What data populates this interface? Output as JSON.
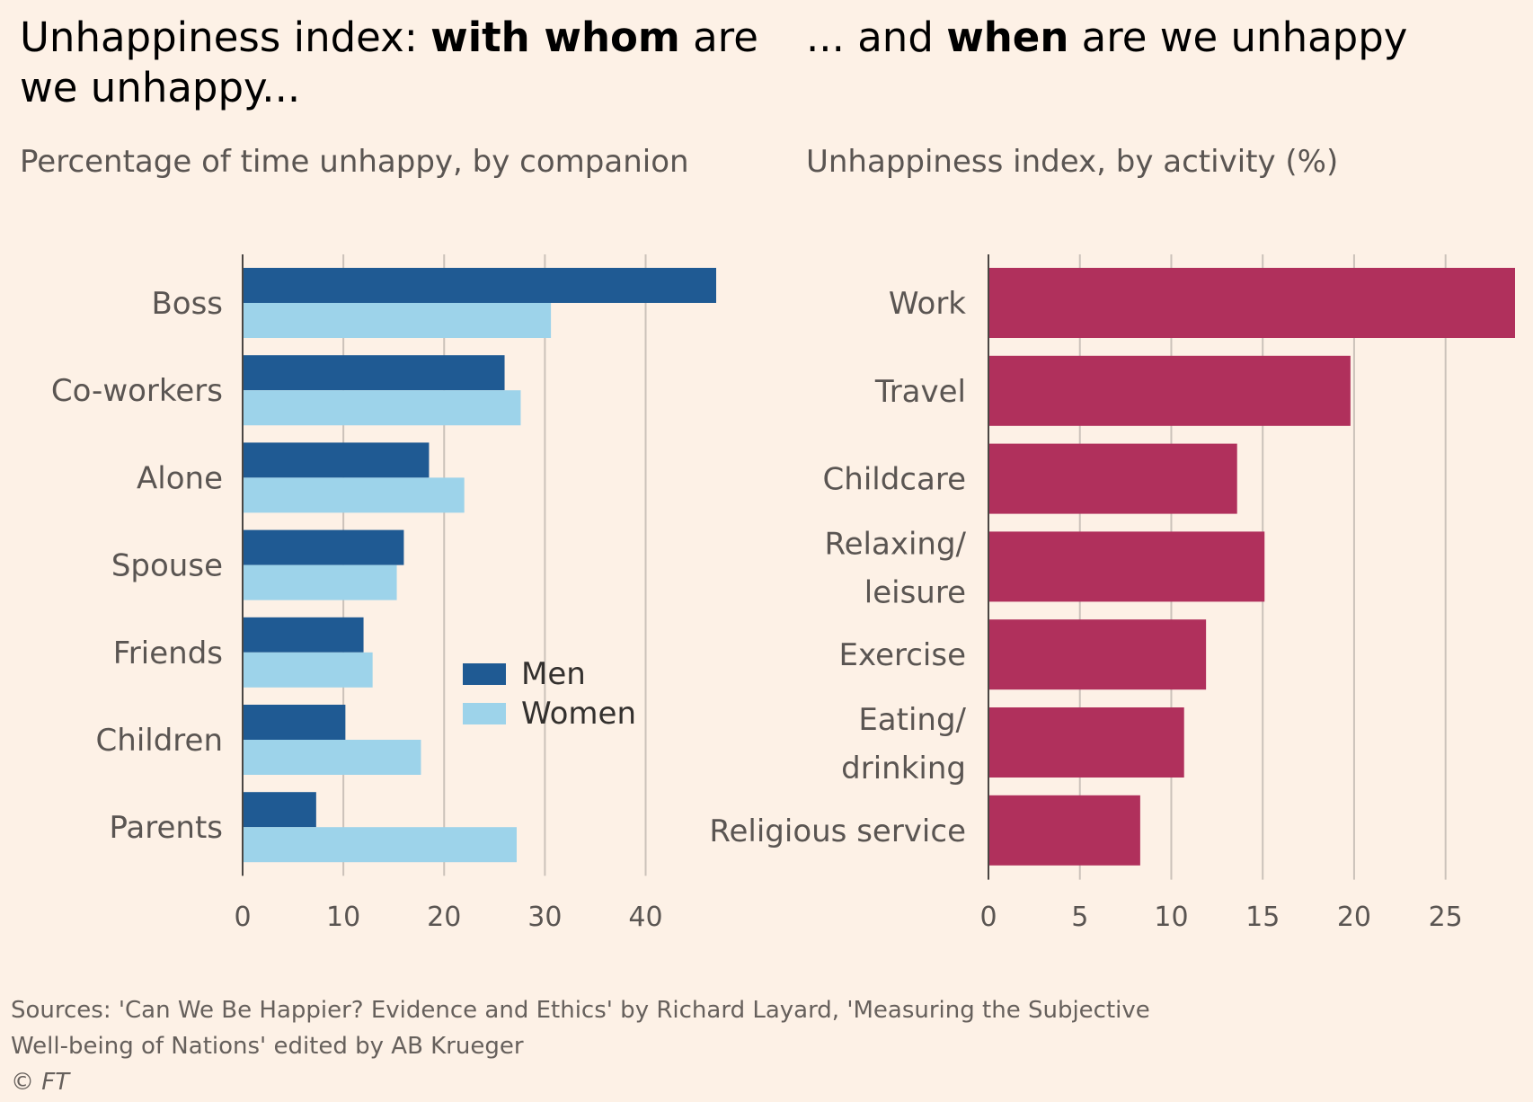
{
  "left": {
    "title_pre": "Unhappiness index: ",
    "title_bold": "with whom",
    "title_post": " are we unhappy...",
    "subtitle": "Percentage of time unhappy, by companion"
  },
  "right": {
    "title_pre": "... and ",
    "title_bold": "when",
    "title_post": " are we unhappy",
    "subtitle": "Unhappiness index, by activity (%)"
  },
  "footer": {
    "sources_line1": "Sources: 'Can We Be Happier? Evidence and Ethics' by Richard Layard, 'Measuring the Subjective",
    "sources_line2": "Well-being of Nations' edited by AB Krueger",
    "copyright": "© FT"
  },
  "chart_data": [
    {
      "type": "bar",
      "orientation": "horizontal",
      "title": "Unhappiness index: with whom are we unhappy...",
      "subtitle": "Percentage of time unhappy, by companion",
      "categories": [
        "Boss",
        "Co-workers",
        "Alone",
        "Spouse",
        "Friends",
        "Children",
        "Parents"
      ],
      "series": [
        {
          "name": "Men",
          "color": "#1f5a93",
          "values": [
            47,
            26,
            18.5,
            16,
            12,
            10.2,
            7.3
          ]
        },
        {
          "name": "Women",
          "color": "#9dd3ea",
          "values": [
            30.6,
            27.6,
            22,
            15.3,
            12.9,
            17.7,
            27.2
          ]
        }
      ],
      "xlim": [
        0,
        47
      ],
      "xticks": [
        0,
        10,
        20,
        30,
        40
      ],
      "grid": true,
      "legend": "center-right"
    },
    {
      "type": "bar",
      "orientation": "horizontal",
      "title": "... and when are we unhappy",
      "subtitle": "Unhappiness index, by activity (%)",
      "categories": [
        "Work",
        "Travel",
        "Childcare",
        "Relaxing/ leisure",
        "Exercise",
        "Eating/ drinking",
        "Religious service"
      ],
      "series": [
        {
          "color": "#b0305c",
          "values": [
            28.8,
            19.8,
            13.6,
            15.1,
            11.9,
            10.7,
            8.3
          ]
        }
      ],
      "xlim": [
        0,
        28.8
      ],
      "xticks": [
        0,
        5,
        10,
        15,
        20,
        25
      ],
      "grid": true
    }
  ]
}
